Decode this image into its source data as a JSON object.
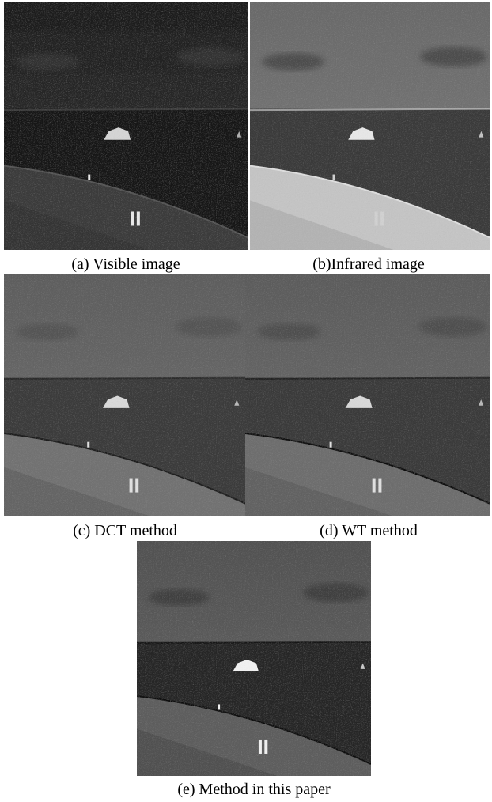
{
  "figure": {
    "panels": [
      {
        "caption": "(a) Visible image"
      },
      {
        "caption": "(b)Infrared image"
      },
      {
        "caption": "(c) DCT method"
      },
      {
        "caption": "(d) WT method"
      },
      {
        "caption": "(e) Method in this paper"
      }
    ]
  }
}
